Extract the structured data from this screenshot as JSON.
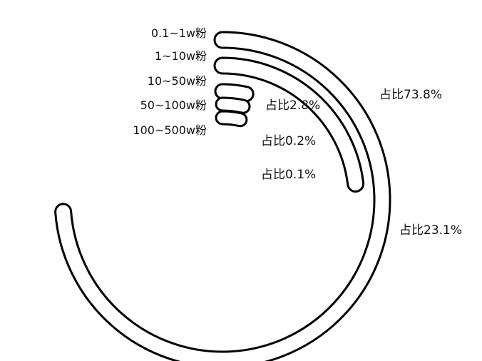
{
  "chart_data": {
    "type": "radial-bar",
    "title": "",
    "categories": [
      "0.1~1w粉",
      "1~10w粉",
      "10~50w粉",
      "50~100w粉",
      "100~500w粉"
    ],
    "values": [
      73.8,
      23.1,
      2.8,
      0.2,
      0.1
    ],
    "unit": "%",
    "value_max": 100,
    "data_labels": [
      "占比73.8%",
      "占比23.1%",
      "占比2.8%",
      "占比0.2%",
      "占比0.1%"
    ],
    "style": {
      "fill": "#ffffff",
      "stroke": "#000000",
      "text": "#111111"
    },
    "grid": false,
    "legend": "none"
  }
}
